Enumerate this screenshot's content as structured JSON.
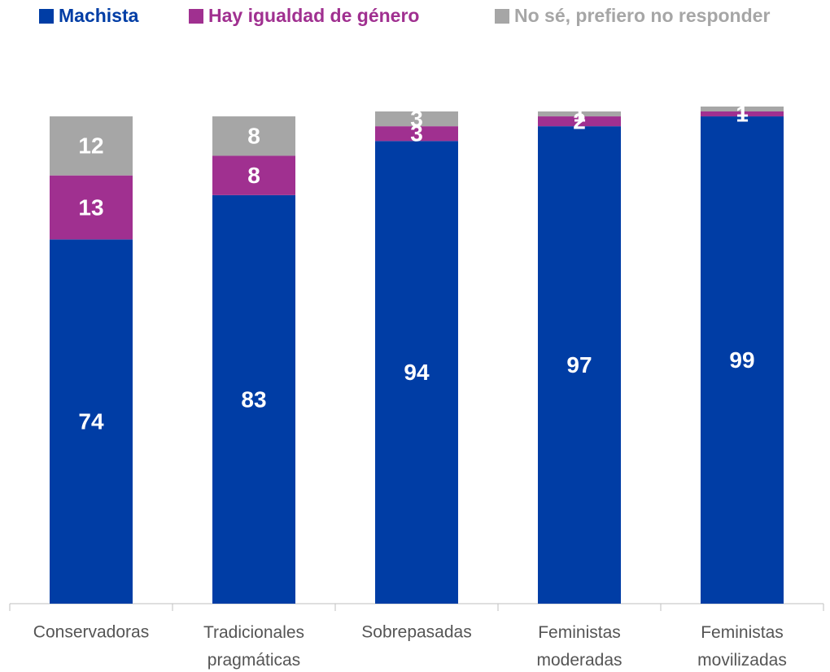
{
  "chart_data": {
    "type": "stacked_bar",
    "categories": [
      "Conservadoras",
      "Tradicionales pragmáticas",
      "Sobrepasadas",
      "Feministas moderadas",
      "Feministas movilizadas"
    ],
    "series": [
      {
        "name": "Machista",
        "color": "#003DA5",
        "values": [
          74,
          83,
          94,
          97,
          99
        ]
      },
      {
        "name": "Hay igualdad de género",
        "color": "#A03090",
        "values": [
          13,
          8,
          3,
          2,
          1
        ]
      },
      {
        "name": "No sé, prefiero no responder",
        "color": "#A6A6A6",
        "values": [
          12,
          8,
          3,
          1,
          1
        ]
      }
    ],
    "ylim": [
      0,
      100
    ],
    "legend": "top"
  }
}
